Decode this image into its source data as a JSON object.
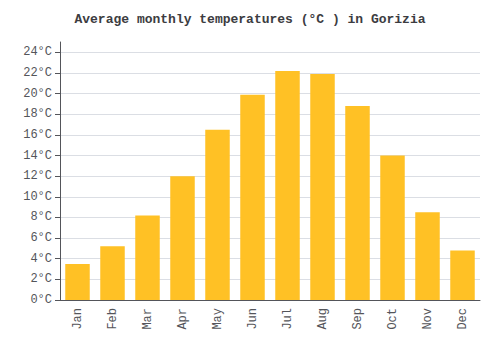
{
  "chart_data": {
    "type": "bar",
    "title": "Average monthly temperatures (°C ) in Gorizia",
    "categories": [
      "Jan",
      "Feb",
      "Mar",
      "Apr",
      "May",
      "Jun",
      "Jul",
      "Aug",
      "Sep",
      "Oct",
      "Nov",
      "Dec"
    ],
    "values": [
      3.5,
      5.2,
      8.2,
      12.0,
      16.5,
      19.9,
      22.2,
      21.9,
      18.8,
      14.0,
      8.5,
      4.8
    ],
    "color": "#FFC125",
    "ylim": [
      0,
      25
    ],
    "yticks": [
      {
        "value": 0,
        "label": "0°C"
      },
      {
        "value": 2,
        "label": "2°C"
      },
      {
        "value": 4,
        "label": "4°C"
      },
      {
        "value": 6,
        "label": "6°C"
      },
      {
        "value": 8,
        "label": "8°C"
      },
      {
        "value": 10,
        "label": "10°C"
      },
      {
        "value": 12,
        "label": "12°C"
      },
      {
        "value": 14,
        "label": "14°C"
      },
      {
        "value": 16,
        "label": "16°C"
      },
      {
        "value": 18,
        "label": "18°C"
      },
      {
        "value": 20,
        "label": "20°C"
      },
      {
        "value": 22,
        "label": "22°C"
      },
      {
        "value": 24,
        "label": "24°C"
      }
    ],
    "grid": true
  }
}
